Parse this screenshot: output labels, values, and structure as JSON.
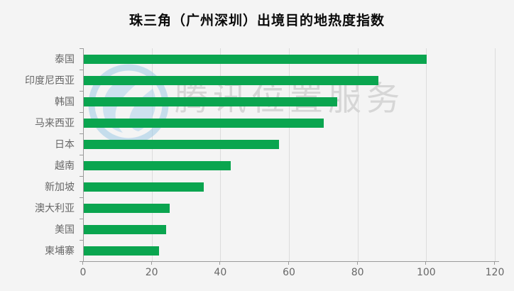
{
  "title": "珠三角（广州深圳）出境目的地热度指数",
  "watermark": {
    "text": "腾讯位置服务",
    "logo_icon": "tencent-location-logo-icon",
    "logo_color": "#9fcbe7",
    "text_color": "#d6d6d6"
  },
  "colors": {
    "background": "#f4f4f4",
    "bar": "#0aa54f",
    "grid": "#dcdcdc",
    "axis": "#9a9a9a",
    "label": "#676767"
  },
  "chart_data": {
    "type": "bar",
    "orientation": "horizontal",
    "title": "珠三角（广州深圳）出境目的地热度指数",
    "categories": [
      "泰国",
      "印度尼西亚",
      "韩国",
      "马来西亚",
      "日本",
      "越南",
      "新加坡",
      "澳大利亚",
      "美国",
      "柬埔寨"
    ],
    "values": [
      100,
      86,
      74,
      70,
      57,
      43,
      35,
      25,
      24,
      22
    ],
    "xlabel": "",
    "ylabel": "",
    "xlim": [
      0,
      120
    ],
    "x_ticks": [
      0,
      20,
      40,
      60,
      80,
      100,
      120
    ],
    "grid": true,
    "legend": "none",
    "bar_color": "#0aa54f"
  }
}
